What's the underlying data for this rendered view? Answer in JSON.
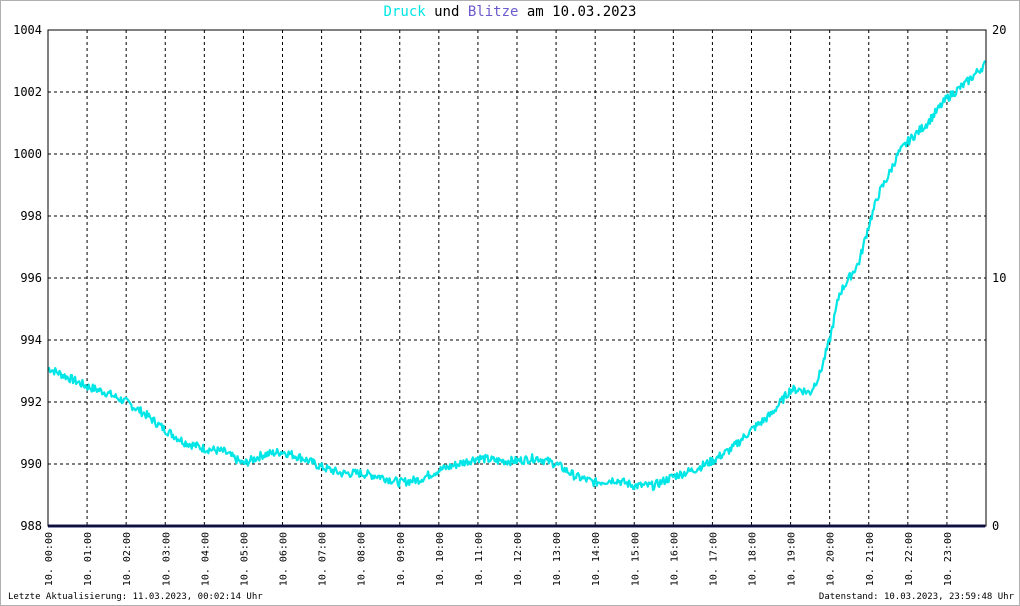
{
  "title": {
    "word1": "Druck",
    "word2": "und",
    "word3": "Blitze",
    "word4": "am",
    "date": "10.03.2023"
  },
  "footer": {
    "left": "Letzte Aktualisierung: 11.03.2023, 00:02:14 Uhr",
    "right": "Datenstand: 10.03.2023, 23:59:48 Uhr"
  },
  "colors": {
    "druck": "#00e6e6",
    "blitze": "#6a5acd",
    "baseline": "#1e1e6e",
    "grid": "#000000"
  },
  "chart_data": {
    "type": "line",
    "title": "Druck und Blitze am 10.03.2023",
    "xlabel": "",
    "ylabel": "",
    "ylim": [
      988,
      1004
    ],
    "y2lim": [
      0,
      20
    ],
    "y_ticks": [
      "988",
      "990",
      "992",
      "994",
      "996",
      "998",
      "1000",
      "1002",
      "1004"
    ],
    "y2_ticks": [
      "0",
      "10",
      "20"
    ],
    "x_tick_labels": [
      "10. 00:00",
      "10. 01:00",
      "10. 02:00",
      "10. 03:00",
      "10. 04:00",
      "10. 05:00",
      "10. 06:00",
      "10. 07:00",
      "10. 08:00",
      "10. 09:00",
      "10. 10:00",
      "10. 11:00",
      "10. 12:00",
      "10. 13:00",
      "10. 14:00",
      "10. 15:00",
      "10. 16:00",
      "10. 17:00",
      "10. 18:00",
      "10. 19:00",
      "10. 20:00",
      "10. 21:00",
      "10. 22:00",
      "10. 23:00"
    ],
    "grid": true,
    "series": [
      {
        "name": "Druck",
        "axis": "left",
        "x_hours": [
          0,
          0.5,
          1,
          1.5,
          2,
          2.5,
          3,
          3.5,
          4,
          4.5,
          5,
          5.5,
          6,
          6.5,
          7,
          7.5,
          8,
          8.5,
          9,
          9.5,
          10,
          10.5,
          11,
          11.5,
          12,
          12.5,
          13,
          13.5,
          14,
          14.5,
          15,
          15.5,
          16,
          16.5,
          17,
          17.5,
          18,
          18.5,
          19,
          19.25,
          19.5,
          19.75,
          20,
          20.25,
          20.5,
          20.75,
          21,
          21.25,
          21.5,
          21.75,
          22,
          22.5,
          23,
          23.5,
          23.98
        ],
        "values": [
          993.1,
          992.8,
          992.5,
          992.3,
          992.0,
          991.6,
          991.1,
          990.7,
          990.5,
          990.4,
          990.0,
          990.3,
          990.4,
          990.2,
          989.9,
          989.7,
          989.7,
          989.6,
          989.4,
          989.5,
          989.8,
          990.0,
          990.2,
          990.1,
          990.1,
          990.2,
          990.0,
          989.6,
          989.4,
          989.5,
          989.3,
          989.3,
          989.6,
          989.8,
          990.1,
          990.5,
          991.1,
          991.6,
          992.4,
          992.4,
          992.3,
          992.9,
          994.0,
          995.5,
          996.0,
          996.5,
          997.7,
          998.7,
          999.3,
          1000.0,
          1000.4,
          1001.0,
          1001.8,
          1002.3,
          1002.9
        ]
      },
      {
        "name": "Blitze",
        "axis": "right",
        "x_hours": [
          0,
          23.98
        ],
        "values": [
          0,
          0
        ]
      }
    ]
  }
}
